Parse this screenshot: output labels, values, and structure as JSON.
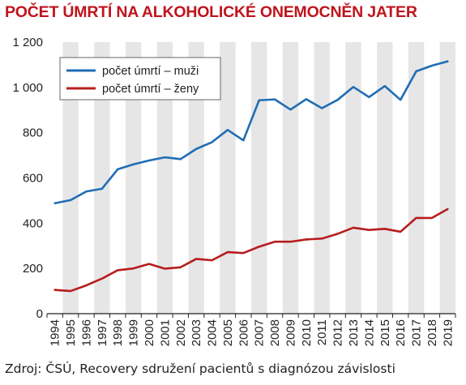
{
  "chart_data": {
    "type": "line",
    "title": "POČET ÚMRTÍ NA ALKOHOLICKÉ ONEMOCNĚN JATER",
    "xlabel": "",
    "ylabel": "",
    "x": [
      "1994",
      "1995",
      "1996",
      "1997",
      "1998",
      "1999",
      "2000",
      "2001",
      "2002",
      "2003",
      "2004",
      "2005",
      "2006",
      "2007",
      "2008",
      "2009",
      "2010",
      "2011",
      "2012",
      "2013",
      "2014",
      "2015",
      "2016",
      "2017",
      "2018",
      "2019"
    ],
    "ylim": [
      0,
      1200
    ],
    "yticks": [
      0,
      200,
      400,
      600,
      800,
      1000,
      1200
    ],
    "ytick_labels": [
      "0",
      "200",
      "400",
      "600",
      "800",
      "1 000",
      "1 200"
    ],
    "grid": "alternating vertical bands",
    "legend_position": "top-left",
    "series": [
      {
        "name": "počet úmrtí – muži",
        "color": "#1f6db5",
        "values": [
          488,
          502,
          540,
          552,
          638,
          660,
          677,
          691,
          683,
          728,
          758,
          812,
          766,
          943,
          947,
          902,
          948,
          908,
          945,
          1002,
          957,
          1006,
          945,
          1071,
          1096,
          1115
        ]
      },
      {
        "name": "počet úmrtí – ženy",
        "color": "#b71c1c",
        "values": [
          105,
          100,
          125,
          155,
          192,
          200,
          220,
          199,
          205,
          242,
          236,
          272,
          268,
          296,
          318,
          318,
          328,
          332,
          353,
          380,
          370,
          375,
          362,
          423,
          423,
          462
        ]
      }
    ]
  },
  "footer": {
    "source": "Zdroj: ČSÚ, Recovery sdružení pacientů s diagnózou závislosti"
  },
  "colors": {
    "title": "#c0141c",
    "band": "#e6e6e6",
    "axis": "#222222"
  }
}
